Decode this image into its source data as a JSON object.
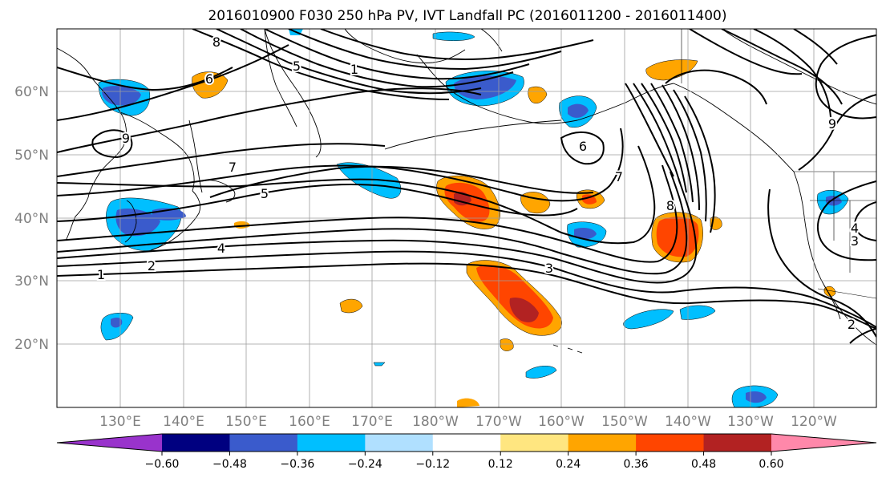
{
  "title": "2016010900 F030 250 hPa PV, IVT Landfall PC (2016011200 - 2016011400)",
  "longitude_labels": [
    "130°E",
    "140°E",
    "150°E",
    "160°E",
    "170°E",
    "180°W",
    "170°W",
    "160°W",
    "150°W",
    "140°W",
    "130°W",
    "120°W"
  ],
  "latitude_labels": [
    "60°N",
    "50°N",
    "40°N",
    "30°N",
    "20°N"
  ],
  "contour_labels": [
    "1",
    "2",
    "3",
    "4",
    "5",
    "6",
    "7",
    "8",
    "9",
    "1",
    "2",
    "3",
    "4",
    "5",
    "6",
    "7",
    "8",
    "9"
  ],
  "colorbar": {
    "tick_labels": [
      "−0.60",
      "−0.48",
      "−0.36",
      "−0.24",
      "−0.12",
      "0.12",
      "0.24",
      "0.36",
      "0.48",
      "0.60"
    ],
    "colors": [
      "#9933cc",
      "#000080",
      "#3a5bcc",
      "#00bfff",
      "#b0e0ff",
      "#ffffff",
      "#ffe680",
      "#ffa500",
      "#ff4500",
      "#b22222",
      "#ff88aa"
    ]
  },
  "chart_data": {
    "type": "heatmap",
    "title": "2016010900 F030 250 hPa PV, IVT Landfall PC (2016011200 - 2016011400)",
    "xlabel": "",
    "ylabel": "",
    "xlim": [
      "120°E",
      "110°W"
    ],
    "ylim": [
      "10°N",
      "70°N"
    ],
    "grid": true,
    "legend": "colorbar-bottom",
    "contour_field": "250 hPa PV",
    "shaded_field": "IVT Landfall PC",
    "colorbar_levels": [
      -0.6,
      -0.48,
      -0.36,
      -0.24,
      -0.12,
      0.12,
      0.24,
      0.36,
      0.48,
      0.6
    ]
  }
}
